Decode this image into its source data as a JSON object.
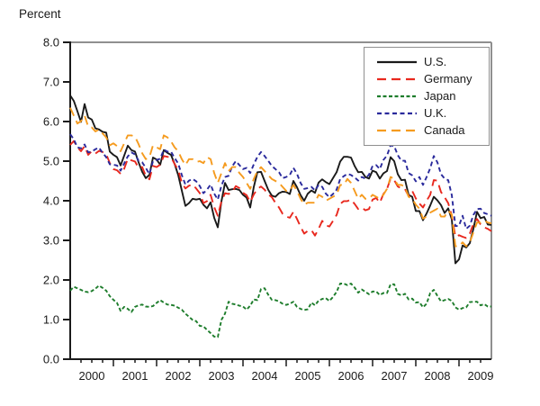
{
  "chart_data": {
    "type": "line",
    "title": "Percent",
    "grid": false,
    "legend_position": "top-right",
    "ylim": [
      0,
      8
    ],
    "y_tick_labels": [
      "0.0",
      "1.0",
      "2.0",
      "3.0",
      "4.0",
      "5.0",
      "6.0",
      "7.0",
      "8.0"
    ],
    "x_tick_labels": [
      "2000",
      "2001",
      "2002",
      "2003",
      "2004",
      "2005",
      "2006",
      "2007",
      "2008",
      "2009"
    ],
    "x_start_year": 2000,
    "x_end_year_fraction": 2009.75,
    "points_per_year": 12,
    "axis_color": "#1a1a1a",
    "frame_color": "#8f8f8f",
    "series": [
      {
        "id": "us",
        "name": "U.S.",
        "color": "#1a1a1a",
        "dash": "solid",
        "values": [
          6.66,
          6.52,
          6.26,
          5.99,
          6.44,
          6.1,
          6.05,
          5.83,
          5.8,
          5.74,
          5.72,
          5.24,
          5.16,
          5.1,
          4.89,
          5.14,
          5.39,
          5.28,
          5.24,
          4.97,
          4.73,
          4.57,
          4.65,
          5.09,
          5.04,
          4.91,
          5.28,
          5.21,
          5.16,
          4.93,
          4.65,
          4.26,
          3.87,
          3.94,
          4.05,
          4.03,
          4.05,
          3.9,
          3.81,
          3.96,
          3.57,
          3.33,
          3.98,
          4.45,
          4.27,
          4.29,
          4.3,
          4.27,
          4.15,
          4.08,
          3.83,
          4.35,
          4.72,
          4.73,
          4.5,
          4.28,
          4.13,
          4.1,
          4.19,
          4.23,
          4.22,
          4.17,
          4.5,
          4.34,
          4.14,
          4.0,
          4.18,
          4.26,
          4.2,
          4.46,
          4.54,
          4.47,
          4.42,
          4.57,
          4.72,
          4.99,
          5.11,
          5.11,
          5.09,
          4.88,
          4.72,
          4.73,
          4.6,
          4.56,
          4.76,
          4.72,
          4.56,
          4.69,
          4.75,
          5.1,
          5.0,
          4.67,
          4.52,
          4.53,
          4.15,
          4.1,
          3.74,
          3.74,
          3.51,
          3.68,
          3.88,
          4.1,
          4.01,
          3.89,
          3.69,
          3.81,
          3.53,
          2.42,
          2.52,
          2.87,
          2.82,
          2.93,
          3.29,
          3.72,
          3.56,
          3.59,
          3.4,
          3.39
        ]
      },
      {
        "id": "germany",
        "name": "Germany",
        "color": "#e8281e",
        "dash": "long-dash",
        "values": [
          5.41,
          5.51,
          5.35,
          5.25,
          5.38,
          5.16,
          5.25,
          5.19,
          5.26,
          5.23,
          5.18,
          4.95,
          4.8,
          4.77,
          4.68,
          4.81,
          5.06,
          5.02,
          4.99,
          4.83,
          4.85,
          4.63,
          4.54,
          4.88,
          4.85,
          4.91,
          5.13,
          5.11,
          5.1,
          4.93,
          4.77,
          4.46,
          4.31,
          4.38,
          4.41,
          4.31,
          4.19,
          3.94,
          3.99,
          4.15,
          3.84,
          3.62,
          3.98,
          4.19,
          4.17,
          4.22,
          4.37,
          4.32,
          4.2,
          4.14,
          3.97,
          4.16,
          4.3,
          4.36,
          4.28,
          4.16,
          4.09,
          3.95,
          3.83,
          3.67,
          3.6,
          3.57,
          3.72,
          3.54,
          3.34,
          3.17,
          3.24,
          3.26,
          3.12,
          3.29,
          3.49,
          3.38,
          3.35,
          3.49,
          3.64,
          3.92,
          3.99,
          3.99,
          4.03,
          3.92,
          3.79,
          3.83,
          3.76,
          3.79,
          4.03,
          4.07,
          3.95,
          4.17,
          4.3,
          4.56,
          4.52,
          4.36,
          4.31,
          4.29,
          4.12,
          4.25,
          4.06,
          3.93,
          3.83,
          4.0,
          4.15,
          4.52,
          4.51,
          4.22,
          4.09,
          3.94,
          3.62,
          3.09,
          3.13,
          3.09,
          3.06,
          3.17,
          3.42,
          3.54,
          3.4,
          3.33,
          3.29,
          3.23
        ]
      },
      {
        "id": "japan",
        "name": "Japan",
        "color": "#1e7d2c",
        "dash": "short-dash",
        "values": [
          1.73,
          1.83,
          1.79,
          1.75,
          1.71,
          1.69,
          1.72,
          1.78,
          1.86,
          1.8,
          1.73,
          1.59,
          1.5,
          1.42,
          1.22,
          1.32,
          1.27,
          1.19,
          1.32,
          1.36,
          1.38,
          1.33,
          1.32,
          1.34,
          1.42,
          1.49,
          1.43,
          1.38,
          1.37,
          1.35,
          1.3,
          1.25,
          1.15,
          1.07,
          0.99,
          0.96,
          0.84,
          0.83,
          0.74,
          0.66,
          0.57,
          0.56,
          0.99,
          1.15,
          1.45,
          1.4,
          1.38,
          1.35,
          1.33,
          1.25,
          1.35,
          1.51,
          1.49,
          1.77,
          1.79,
          1.63,
          1.5,
          1.49,
          1.46,
          1.4,
          1.37,
          1.4,
          1.45,
          1.32,
          1.27,
          1.24,
          1.26,
          1.43,
          1.36,
          1.48,
          1.52,
          1.54,
          1.47,
          1.57,
          1.7,
          1.91,
          1.91,
          1.87,
          1.91,
          1.81,
          1.68,
          1.76,
          1.7,
          1.64,
          1.71,
          1.71,
          1.62,
          1.67,
          1.67,
          1.89,
          1.89,
          1.65,
          1.61,
          1.65,
          1.51,
          1.53,
          1.43,
          1.44,
          1.31,
          1.4,
          1.67,
          1.75,
          1.6,
          1.46,
          1.49,
          1.52,
          1.47,
          1.31,
          1.25,
          1.29,
          1.31,
          1.44,
          1.45,
          1.45,
          1.36,
          1.39,
          1.33,
          1.33
        ]
      },
      {
        "id": "uk",
        "name": "U.K.",
        "color": "#2a2a9c",
        "dash": "med-dash",
        "values": [
          5.68,
          5.55,
          5.35,
          5.32,
          5.42,
          5.22,
          5.24,
          5.3,
          5.34,
          5.21,
          5.1,
          4.92,
          4.91,
          4.89,
          4.76,
          4.94,
          5.12,
          5.22,
          5.17,
          5.01,
          4.97,
          4.83,
          4.67,
          5.0,
          5.03,
          5.06,
          5.29,
          5.24,
          5.24,
          5.08,
          4.94,
          4.65,
          4.41,
          4.51,
          4.55,
          4.49,
          4.37,
          4.19,
          4.28,
          4.41,
          4.18,
          4.03,
          4.38,
          4.6,
          4.63,
          4.87,
          5.0,
          4.9,
          4.8,
          4.83,
          4.7,
          4.92,
          5.11,
          5.23,
          5.13,
          5.01,
          4.88,
          4.8,
          4.72,
          4.57,
          4.6,
          4.65,
          4.83,
          4.68,
          4.45,
          4.3,
          4.32,
          4.35,
          4.26,
          4.4,
          4.35,
          4.18,
          4.09,
          4.17,
          4.28,
          4.55,
          4.62,
          4.68,
          4.65,
          4.59,
          4.51,
          4.6,
          4.56,
          4.66,
          4.88,
          4.9,
          4.8,
          5.03,
          5.14,
          5.4,
          5.38,
          5.15,
          5.01,
          5.01,
          4.7,
          4.64,
          4.49,
          4.6,
          4.4,
          4.6,
          4.82,
          5.13,
          4.97,
          4.67,
          4.56,
          4.52,
          4.14,
          3.36,
          3.37,
          3.62,
          3.29,
          3.37,
          3.64,
          3.79,
          3.8,
          3.69,
          3.66,
          3.62
        ]
      },
      {
        "id": "canada",
        "name": "Canada",
        "color": "#f59b1f",
        "dash": "long-dash",
        "values": [
          6.35,
          6.15,
          5.95,
          6.01,
          6.15,
          5.87,
          5.85,
          5.75,
          5.8,
          5.7,
          5.6,
          5.4,
          5.45,
          5.38,
          5.25,
          5.45,
          5.65,
          5.65,
          5.62,
          5.43,
          5.2,
          5.05,
          5.1,
          5.4,
          5.35,
          5.3,
          5.65,
          5.6,
          5.5,
          5.35,
          5.25,
          5.05,
          4.9,
          5.05,
          5.05,
          4.98,
          5.0,
          4.95,
          5.1,
          5.05,
          4.7,
          4.45,
          4.7,
          4.95,
          4.75,
          4.85,
          4.85,
          4.7,
          4.6,
          4.45,
          4.3,
          4.55,
          4.75,
          4.85,
          4.75,
          4.65,
          4.55,
          4.5,
          4.45,
          4.35,
          4.25,
          4.25,
          4.4,
          4.25,
          4.05,
          3.9,
          3.95,
          3.95,
          3.95,
          4.15,
          4.1,
          4.0,
          4.05,
          4.1,
          4.15,
          4.4,
          4.4,
          4.55,
          4.45,
          4.25,
          4.05,
          4.15,
          4.05,
          4.05,
          4.15,
          4.1,
          4.05,
          4.15,
          4.3,
          4.6,
          4.55,
          4.4,
          4.4,
          4.35,
          4.1,
          4.05,
          3.9,
          3.8,
          3.55,
          3.6,
          3.7,
          3.75,
          3.8,
          3.6,
          3.6,
          3.75,
          3.65,
          2.85,
          2.85,
          2.95,
          2.85,
          2.95,
          3.2,
          3.45,
          3.45,
          3.5,
          3.45,
          3.43
        ]
      }
    ]
  }
}
